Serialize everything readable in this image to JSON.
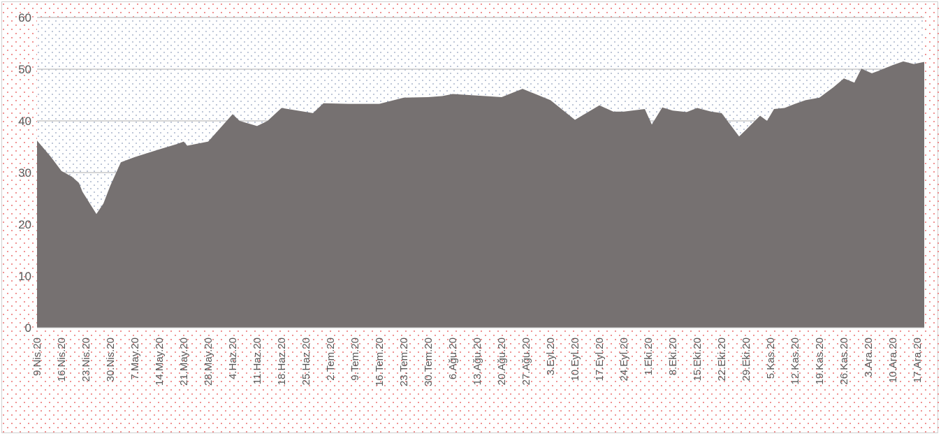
{
  "chart_data": {
    "type": "area",
    "title": "",
    "xlabel": "",
    "ylabel": "",
    "ylim": [
      0,
      60
    ],
    "y_ticks": [
      0,
      10,
      20,
      30,
      40,
      50,
      60
    ],
    "grid": true,
    "legend": "none",
    "x_tick_labels": [
      "9.Nis.20",
      "16.Nis.20",
      "23.Nis.20",
      "30.Nis.20",
      "7.May.20",
      "14.May.20",
      "21.May.20",
      "28.May.20",
      "4.Haz.20",
      "11.Haz.20",
      "18.Haz.20",
      "25.Haz.20",
      "2.Tem.20",
      "9.Tem.20",
      "16.Tem.20",
      "23.Tem.20",
      "30.Tem.20",
      "6.Ağu.20",
      "13.Ağu.20",
      "20.Ağu.20",
      "27.Ağu.20",
      "3.Eyl.20",
      "10.Eyl.20",
      "17.Eyl.20",
      "24.Eyl.20",
      "1.Eki.20",
      "8.Eki.20",
      "15.Eki.20",
      "22.Eki.20",
      "29.Eki.20",
      "5.Kas.20",
      "12.Kas.20",
      "19.Kas.20",
      "26.Kas.20",
      "3.Ara.20",
      "10.Ara.20",
      "17.Ara.20"
    ],
    "x_dates": [
      "2020-04-09",
      "2020-04-13",
      "2020-04-16",
      "2020-04-19",
      "2020-04-21",
      "2020-04-22",
      "2020-04-26",
      "2020-04-28",
      "2020-04-30",
      "2020-05-03",
      "2020-05-07",
      "2020-05-14",
      "2020-05-19",
      "2020-05-21",
      "2020-05-22",
      "2020-05-28",
      "2020-06-04",
      "2020-06-06",
      "2020-06-11",
      "2020-06-14",
      "2020-06-18",
      "2020-06-27",
      "2020-06-30",
      "2020-07-07",
      "2020-07-16",
      "2020-07-23",
      "2020-07-30",
      "2020-08-03",
      "2020-08-06",
      "2020-08-13",
      "2020-08-20",
      "2020-08-26",
      "2020-09-03",
      "2020-09-10",
      "2020-09-17",
      "2020-09-21",
      "2020-09-24",
      "2020-09-30",
      "2020-10-02",
      "2020-10-05",
      "2020-10-08",
      "2020-10-12",
      "2020-10-15",
      "2020-10-19",
      "2020-10-22",
      "2020-10-27",
      "2020-10-29",
      "2020-11-02",
      "2020-11-04",
      "2020-11-06",
      "2020-11-09",
      "2020-11-12",
      "2020-11-15",
      "2020-11-19",
      "2020-11-23",
      "2020-11-26",
      "2020-11-29",
      "2020-12-01",
      "2020-12-04",
      "2020-12-06",
      "2020-12-10",
      "2020-12-13",
      "2020-12-16",
      "2020-12-19"
    ],
    "series": [
      {
        "name": "",
        "color": "#767171",
        "values": [
          36.2,
          33.0,
          30.3,
          29.2,
          28.0,
          26.3,
          22.0,
          24.0,
          27.5,
          32.0,
          33.0,
          34.5,
          35.5,
          36.0,
          35.2,
          36.0,
          41.3,
          40.0,
          39.0,
          40.0,
          42.5,
          41.5,
          43.4,
          43.3,
          43.3,
          44.5,
          44.6,
          44.8,
          45.2,
          44.9,
          44.6,
          46.2,
          44.0,
          40.2,
          43.0,
          41.8,
          41.8,
          42.3,
          39.3,
          42.6,
          42.0,
          41.7,
          42.5,
          41.8,
          41.5,
          37.0,
          38.3,
          41.0,
          40.0,
          42.3,
          42.5,
          43.3,
          44.0,
          44.5,
          46.5,
          48.2,
          47.4,
          50.1,
          49.2,
          49.7,
          50.8,
          51.5,
          51.0,
          51.4
        ]
      }
    ]
  }
}
